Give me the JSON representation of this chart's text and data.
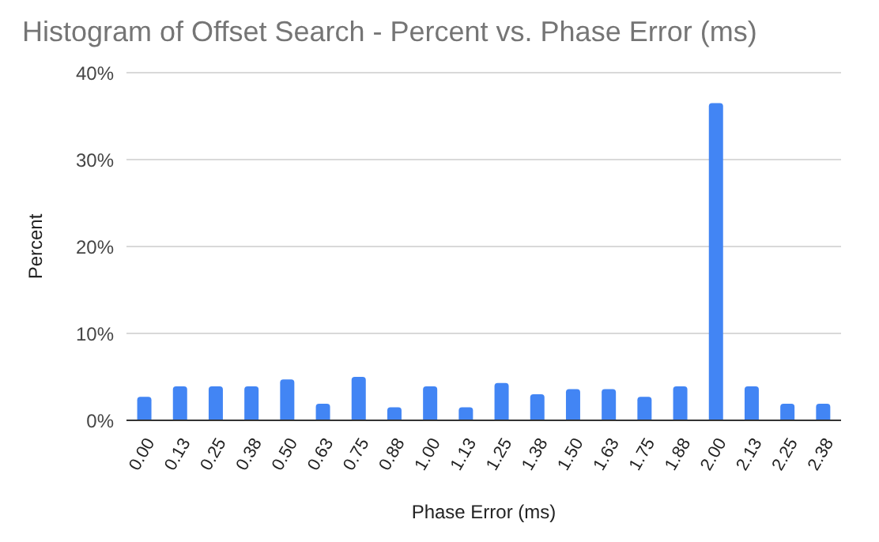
{
  "chart_data": {
    "type": "bar",
    "title": "Histogram of Offset Search - Percent vs. Phase Error (ms)",
    "xlabel": "Phase Error (ms)",
    "ylabel": "Percent",
    "categories": [
      "0.00",
      "0.13",
      "0.25",
      "0.38",
      "0.50",
      "0.63",
      "0.75",
      "0.88",
      "1.00",
      "1.13",
      "1.25",
      "1.38",
      "1.50",
      "1.63",
      "1.75",
      "1.88",
      "2.00",
      "2.13",
      "2.25",
      "2.38"
    ],
    "values": [
      2.7,
      3.9,
      3.9,
      3.9,
      4.7,
      1.9,
      5.0,
      1.5,
      3.9,
      1.5,
      4.3,
      3.0,
      3.6,
      3.6,
      2.7,
      3.9,
      36.5,
      3.9,
      1.9,
      1.9
    ],
    "color": "#4285f4",
    "ylim": [
      0,
      40
    ],
    "yticks": [
      {
        "value": 0,
        "label": "0%"
      },
      {
        "value": 10,
        "label": "10%"
      },
      {
        "value": 20,
        "label": "20%"
      },
      {
        "value": 30,
        "label": "30%"
      },
      {
        "value": 40,
        "label": "40%"
      }
    ],
    "grid": "y"
  }
}
